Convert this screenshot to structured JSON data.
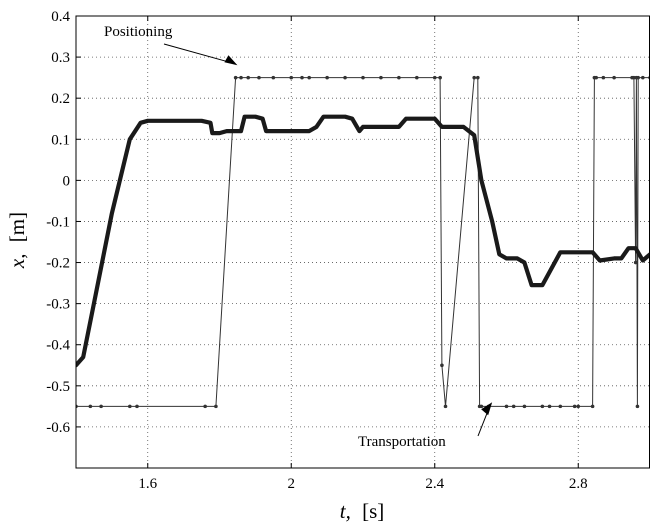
{
  "chart_data": {
    "type": "line",
    "xlabel_var": "t,",
    "xlabel_unit": "[s]",
    "ylabel_var": "x,",
    "ylabel_unit": "[m]",
    "xlim": [
      1.4,
      3.0
    ],
    "ylim": [
      -0.7,
      0.4
    ],
    "x_ticks": [
      1.6,
      2.0,
      2.4,
      2.8
    ],
    "x_tick_labels": [
      "1.6",
      "2",
      "2.4",
      "2.8"
    ],
    "y_ticks": [
      0.4,
      0.3,
      0.2,
      0.1,
      0,
      -0.1,
      -0.2,
      -0.3,
      -0.4,
      -0.5,
      -0.6
    ],
    "y_tick_labels": [
      "0.4",
      "0.3",
      "0.2",
      "0.1",
      "0",
      "-0.1",
      "-0.2",
      "-0.3",
      "-0.4",
      "-0.5",
      "-0.6"
    ],
    "grid": true,
    "grid_style": "dotted",
    "series": [
      {
        "style": "thick",
        "color": "#1a1a1a",
        "x": [
          1.4,
          1.42,
          1.45,
          1.5,
          1.55,
          1.58,
          1.6,
          1.65,
          1.7,
          1.75,
          1.775,
          1.78,
          1.8,
          1.82,
          1.86,
          1.87,
          1.9,
          1.92,
          1.93,
          1.95,
          2.0,
          2.05,
          2.07,
          2.09,
          2.12,
          2.15,
          2.17,
          2.19,
          2.2,
          2.25,
          2.28,
          2.3,
          2.32,
          2.35,
          2.38,
          2.4,
          2.42,
          2.45,
          2.48,
          2.51,
          2.53,
          2.56,
          2.58,
          2.6,
          2.63,
          2.65,
          2.67,
          2.7,
          2.75,
          2.79,
          2.81,
          2.84,
          2.86,
          2.9,
          2.92,
          2.94,
          2.96,
          2.98,
          3.0
        ],
        "y": [
          -0.45,
          -0.43,
          -0.3,
          -0.08,
          0.1,
          0.14,
          0.145,
          0.145,
          0.145,
          0.145,
          0.14,
          0.115,
          0.115,
          0.12,
          0.12,
          0.155,
          0.155,
          0.15,
          0.12,
          0.12,
          0.12,
          0.12,
          0.13,
          0.155,
          0.155,
          0.155,
          0.15,
          0.12,
          0.13,
          0.13,
          0.13,
          0.13,
          0.15,
          0.15,
          0.15,
          0.15,
          0.13,
          0.13,
          0.13,
          0.11,
          0.0,
          -0.1,
          -0.18,
          -0.19,
          -0.19,
          -0.2,
          -0.255,
          -0.255,
          -0.175,
          -0.175,
          -0.175,
          -0.175,
          -0.195,
          -0.19,
          -0.19,
          -0.165,
          -0.165,
          -0.195,
          -0.18
        ]
      },
      {
        "style": "thin",
        "color": "#333333",
        "x": [
          1.4,
          1.44,
          1.47,
          1.55,
          1.57,
          1.76,
          1.79,
          1.845,
          1.86,
          1.88,
          1.91,
          1.95,
          2.0,
          2.03,
          2.05,
          2.1,
          2.15,
          2.2,
          2.25,
          2.3,
          2.35,
          2.4,
          2.415,
          2.42,
          2.43,
          2.51,
          2.52,
          2.525,
          2.53,
          2.55,
          2.6,
          2.62,
          2.65,
          2.7,
          2.72,
          2.75,
          2.79,
          2.8,
          2.84,
          2.845,
          2.85,
          2.87,
          2.9,
          2.95,
          2.955,
          2.96,
          2.962,
          2.965,
          2.967,
          2.98,
          3.0
        ],
        "y": [
          -0.55,
          -0.55,
          -0.55,
          -0.55,
          -0.55,
          -0.55,
          -0.55,
          0.25,
          0.25,
          0.25,
          0.25,
          0.25,
          0.25,
          0.25,
          0.25,
          0.25,
          0.25,
          0.25,
          0.25,
          0.25,
          0.25,
          0.25,
          0.25,
          -0.45,
          -0.55,
          0.25,
          0.25,
          -0.55,
          -0.55,
          -0.55,
          -0.55,
          -0.55,
          -0.55,
          -0.55,
          -0.55,
          -0.55,
          -0.55,
          -0.55,
          -0.55,
          0.25,
          0.25,
          0.25,
          0.25,
          0.25,
          0.25,
          -0.2,
          0.25,
          -0.55,
          0.25,
          0.25,
          0.25
        ]
      }
    ],
    "annotations": [
      {
        "text": "Positioning",
        "arrow_to": [
          1.85,
          0.28
        ]
      },
      {
        "text": "Transportation",
        "arrow_to": [
          2.56,
          -0.54
        ]
      }
    ]
  }
}
